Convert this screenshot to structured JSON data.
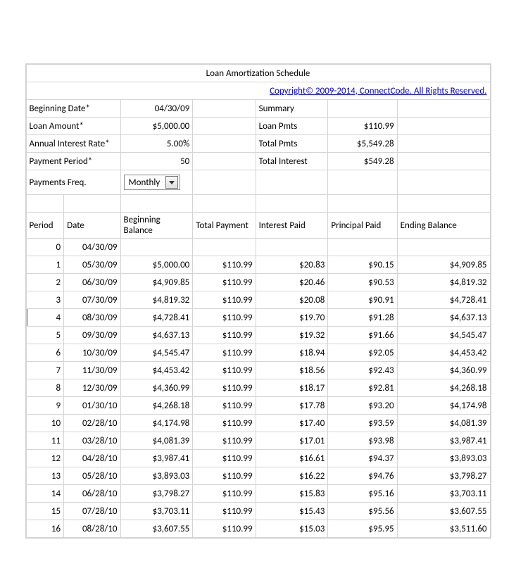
{
  "title": "Loan Amortization Schedule",
  "copyright": "Copyright© 2009-2014, ConnectCode. All Rights Reserved.",
  "inputs": {
    "beginning_date_label": "Beginning Date*",
    "beginning_date_value": "04/30/09",
    "loan_amount_label": "Loan Amount*",
    "loan_amount_value": "$5,000.00",
    "annual_rate_label": "Annual Interest Rate*",
    "annual_rate_value": "5.00%",
    "payment_period_label": "Payment Period*",
    "payment_period_value": "50",
    "payments_freq_label": "Payments Freq.",
    "payments_freq_value": "Monthly"
  },
  "summary": {
    "header": "Summary",
    "loan_pmts_label": "Loan Pmts",
    "loan_pmts_value": "$110.99",
    "total_pmts_label": "Total Pmts",
    "total_pmts_value": "$5,549.28",
    "total_interest_label": "Total Interest",
    "total_interest_value": "$549.28"
  },
  "columns": {
    "period": "Period",
    "date": "Date",
    "beginning_balance": "Beginning Balance",
    "total_payment": "Total Payment",
    "interest_paid": "Interest Paid",
    "principal_paid": "Principal Paid",
    "ending_balance": "Ending Balance"
  },
  "rows": [
    {
      "period": "0",
      "date": "04/30/09",
      "beg": "",
      "tot": "",
      "int": "",
      "prin": "",
      "end": ""
    },
    {
      "period": "1",
      "date": "05/30/09",
      "beg": "$5,000.00",
      "tot": "$110.99",
      "int": "$20.83",
      "prin": "$90.15",
      "end": "$4,909.85"
    },
    {
      "period": "2",
      "date": "06/30/09",
      "beg": "$4,909.85",
      "tot": "$110.99",
      "int": "$20.46",
      "prin": "$90.53",
      "end": "$4,819.32"
    },
    {
      "period": "3",
      "date": "07/30/09",
      "beg": "$4,819.32",
      "tot": "$110.99",
      "int": "$20.08",
      "prin": "$90.91",
      "end": "$4,728.41"
    },
    {
      "period": "4",
      "date": "08/30/09",
      "beg": "$4,728.41",
      "tot": "$110.99",
      "int": "$19.70",
      "prin": "$91.28",
      "end": "$4,637.13"
    },
    {
      "period": "5",
      "date": "09/30/09",
      "beg": "$4,637.13",
      "tot": "$110.99",
      "int": "$19.32",
      "prin": "$91.66",
      "end": "$4,545.47"
    },
    {
      "period": "6",
      "date": "10/30/09",
      "beg": "$4,545.47",
      "tot": "$110.99",
      "int": "$18.94",
      "prin": "$92.05",
      "end": "$4,453.42"
    },
    {
      "period": "7",
      "date": "11/30/09",
      "beg": "$4,453.42",
      "tot": "$110.99",
      "int": "$18.56",
      "prin": "$92.43",
      "end": "$4,360.99"
    },
    {
      "period": "8",
      "date": "12/30/09",
      "beg": "$4,360.99",
      "tot": "$110.99",
      "int": "$18.17",
      "prin": "$92.81",
      "end": "$4,268.18"
    },
    {
      "period": "9",
      "date": "01/30/10",
      "beg": "$4,268.18",
      "tot": "$110.99",
      "int": "$17.78",
      "prin": "$93.20",
      "end": "$4,174.98"
    },
    {
      "period": "10",
      "date": "02/28/10",
      "beg": "$4,174.98",
      "tot": "$110.99",
      "int": "$17.40",
      "prin": "$93.59",
      "end": "$4,081.39"
    },
    {
      "period": "11",
      "date": "03/28/10",
      "beg": "$4,081.39",
      "tot": "$110.99",
      "int": "$17.01",
      "prin": "$93.98",
      "end": "$3,987.41"
    },
    {
      "period": "12",
      "date": "04/28/10",
      "beg": "$3,987.41",
      "tot": "$110.99",
      "int": "$16.61",
      "prin": "$94.37",
      "end": "$3,893.03"
    },
    {
      "period": "13",
      "date": "05/28/10",
      "beg": "$3,893.03",
      "tot": "$110.99",
      "int": "$16.22",
      "prin": "$94.76",
      "end": "$3,798.27"
    },
    {
      "period": "14",
      "date": "06/28/10",
      "beg": "$3,798.27",
      "tot": "$110.99",
      "int": "$15.83",
      "prin": "$95.16",
      "end": "$3,703.11"
    },
    {
      "period": "15",
      "date": "07/28/10",
      "beg": "$3,703.11",
      "tot": "$110.99",
      "int": "$15.43",
      "prin": "$95.56",
      "end": "$3,607.55"
    },
    {
      "period": "16",
      "date": "08/28/10",
      "beg": "$3,607.55",
      "tot": "$110.99",
      "int": "$15.03",
      "prin": "$95.95",
      "end": "$3,511.60"
    }
  ],
  "style": {
    "font_family": "Calibri",
    "title_fontsize": 26,
    "body_fontsize": 13,
    "border_color": "#d4d4d4",
    "link_color": "#0000ee",
    "marker_color": "#2e7d32",
    "background": "#ffffff"
  }
}
